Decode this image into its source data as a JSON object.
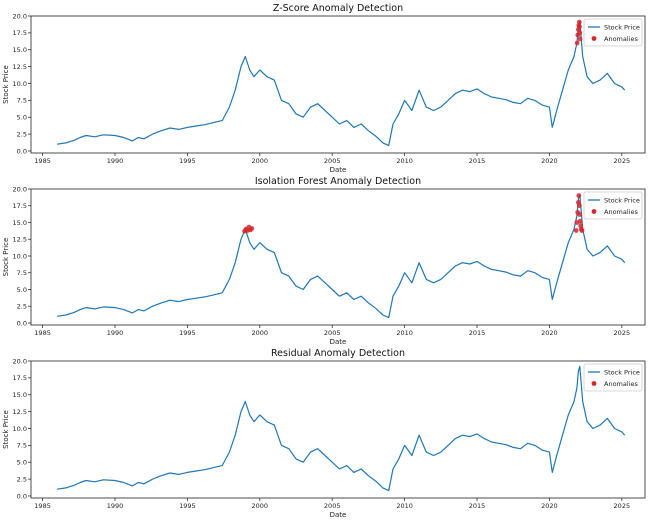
{
  "chart_data": [
    {
      "type": "line",
      "title": "Z-Score Anomaly Detection",
      "xlabel": "Date",
      "ylabel": "Stock Price",
      "xlim": [
        1984.2,
        2026.6
      ],
      "ylim": [
        -0.3,
        20.0
      ],
      "xticks": [
        1985,
        1990,
        1995,
        2000,
        2005,
        2010,
        2015,
        2020,
        2025
      ],
      "yticks": [
        0.0,
        2.5,
        5.0,
        7.5,
        10.0,
        12.5,
        15.0,
        17.5,
        20.0
      ],
      "legend_position": "top-right",
      "grid": false,
      "colors": {
        "line": "#1f77b4",
        "anomaly": "#d62728"
      },
      "series": [
        {
          "name": "Stock Price",
          "x": [
            1986.0,
            1986.6,
            1987.2,
            1987.6,
            1988.0,
            1988.6,
            1989.2,
            1990.0,
            1990.6,
            1991.2,
            1991.6,
            1992.0,
            1992.6,
            1993.2,
            1993.8,
            1994.4,
            1995.0,
            1995.6,
            1996.2,
            1996.8,
            1997.4,
            1997.9,
            1998.3,
            1998.7,
            1999.0,
            1999.3,
            1999.6,
            2000.0,
            2000.5,
            2001.0,
            2001.5,
            2002.0,
            2002.5,
            2003.0,
            2003.5,
            2004.0,
            2004.5,
            2005.0,
            2005.5,
            2006.0,
            2006.5,
            2007.0,
            2007.5,
            2008.0,
            2008.5,
            2008.9,
            2009.2,
            2009.6,
            2010.0,
            2010.5,
            2011.0,
            2011.5,
            2012.0,
            2012.5,
            2013.0,
            2013.5,
            2014.0,
            2014.5,
            2015.0,
            2015.5,
            2016.0,
            2016.5,
            2017.0,
            2017.5,
            2018.0,
            2018.5,
            2019.0,
            2019.5,
            2020.0,
            2020.2,
            2020.5,
            2020.9,
            2021.3,
            2021.7,
            2021.9,
            2022.0,
            2022.1,
            2022.3,
            2022.6,
            2023.0,
            2023.5,
            2024.0,
            2024.5,
            2025.0,
            2025.2
          ],
          "values": [
            1.0,
            1.2,
            1.6,
            2.0,
            2.3,
            2.1,
            2.4,
            2.3,
            2.0,
            1.5,
            2.0,
            1.8,
            2.5,
            3.0,
            3.4,
            3.2,
            3.5,
            3.7,
            3.9,
            4.2,
            4.5,
            6.5,
            9.0,
            12.5,
            14.0,
            12.0,
            11.0,
            12.0,
            11.0,
            10.5,
            7.5,
            7.0,
            5.5,
            5.0,
            6.5,
            7.0,
            6.0,
            5.0,
            4.0,
            4.5,
            3.5,
            4.0,
            3.0,
            2.2,
            1.2,
            0.8,
            4.0,
            5.5,
            7.5,
            6.0,
            9.0,
            6.5,
            6.0,
            6.5,
            7.5,
            8.5,
            9.0,
            8.8,
            9.2,
            8.5,
            8.0,
            7.8,
            7.6,
            7.2,
            7.0,
            7.8,
            7.5,
            6.8,
            6.5,
            3.5,
            6.0,
            9.0,
            12.0,
            14.0,
            16.0,
            18.5,
            19.2,
            14.0,
            11.0,
            10.0,
            10.5,
            11.5,
            10.0,
            9.5,
            9.0
          ]
        },
        {
          "name": "Anomalies",
          "x": [
            2021.92,
            2021.96,
            2022.0,
            2022.03,
            2022.06,
            2022.08,
            2022.1,
            2022.12
          ],
          "values": [
            16.0,
            17.2,
            18.0,
            18.6,
            19.1,
            18.4,
            17.5,
            16.6
          ]
        }
      ]
    },
    {
      "type": "line",
      "title": "Isolation Forest Anomaly Detection",
      "xlabel": "Date",
      "ylabel": "Stock Price",
      "xlim": [
        1984.2,
        2026.6
      ],
      "ylim": [
        -0.3,
        20.0
      ],
      "xticks": [
        1985,
        1990,
        1995,
        2000,
        2005,
        2010,
        2015,
        2020,
        2025
      ],
      "yticks": [
        0.0,
        2.5,
        5.0,
        7.5,
        10.0,
        12.5,
        15.0,
        17.5,
        20.0
      ],
      "legend_position": "top-right",
      "grid": false,
      "colors": {
        "line": "#1f77b4",
        "anomaly": "#d62728"
      },
      "series": [
        {
          "name": "Stock Price",
          "x": [
            1986.0,
            1986.6,
            1987.2,
            1987.6,
            1988.0,
            1988.6,
            1989.2,
            1990.0,
            1990.6,
            1991.2,
            1991.6,
            1992.0,
            1992.6,
            1993.2,
            1993.8,
            1994.4,
            1995.0,
            1995.6,
            1996.2,
            1996.8,
            1997.4,
            1997.9,
            1998.3,
            1998.7,
            1999.0,
            1999.3,
            1999.6,
            2000.0,
            2000.5,
            2001.0,
            2001.5,
            2002.0,
            2002.5,
            2003.0,
            2003.5,
            2004.0,
            2004.5,
            2005.0,
            2005.5,
            2006.0,
            2006.5,
            2007.0,
            2007.5,
            2008.0,
            2008.5,
            2008.9,
            2009.2,
            2009.6,
            2010.0,
            2010.5,
            2011.0,
            2011.5,
            2012.0,
            2012.5,
            2013.0,
            2013.5,
            2014.0,
            2014.5,
            2015.0,
            2015.5,
            2016.0,
            2016.5,
            2017.0,
            2017.5,
            2018.0,
            2018.5,
            2019.0,
            2019.5,
            2020.0,
            2020.2,
            2020.5,
            2020.9,
            2021.3,
            2021.7,
            2021.9,
            2022.0,
            2022.1,
            2022.3,
            2022.6,
            2023.0,
            2023.5,
            2024.0,
            2024.5,
            2025.0,
            2025.2
          ],
          "values": [
            1.0,
            1.2,
            1.6,
            2.0,
            2.3,
            2.1,
            2.4,
            2.3,
            2.0,
            1.5,
            2.0,
            1.8,
            2.5,
            3.0,
            3.4,
            3.2,
            3.5,
            3.7,
            3.9,
            4.2,
            4.5,
            6.5,
            9.0,
            12.5,
            14.0,
            12.0,
            11.0,
            12.0,
            11.0,
            10.5,
            7.5,
            7.0,
            5.5,
            5.0,
            6.5,
            7.0,
            6.0,
            5.0,
            4.0,
            4.5,
            3.5,
            4.0,
            3.0,
            2.2,
            1.2,
            0.8,
            4.0,
            5.5,
            7.5,
            6.0,
            9.0,
            6.5,
            6.0,
            6.5,
            7.5,
            8.5,
            9.0,
            8.8,
            9.2,
            8.5,
            8.0,
            7.8,
            7.6,
            7.2,
            7.0,
            7.8,
            7.5,
            6.8,
            6.5,
            3.5,
            6.0,
            9.0,
            12.0,
            14.0,
            16.0,
            18.5,
            19.2,
            14.0,
            11.0,
            10.0,
            10.5,
            11.5,
            10.0,
            9.5,
            9.0
          ]
        },
        {
          "name": "Anomalies",
          "x": [
            1998.95,
            1999.05,
            1999.15,
            1999.25,
            1999.35,
            1999.45,
            2021.85,
            2021.9,
            2021.95,
            2022.0,
            2022.03,
            2022.06,
            2022.09,
            2022.12,
            2022.16,
            2022.2,
            2022.25
          ],
          "values": [
            13.7,
            14.0,
            13.8,
            14.3,
            13.9,
            14.1,
            13.8,
            15.0,
            16.5,
            18.0,
            19.0,
            17.5,
            16.2,
            15.2,
            14.5,
            14.0,
            13.8
          ]
        }
      ]
    },
    {
      "type": "line",
      "title": "Residual Anomaly Detection",
      "xlabel": "Date",
      "ylabel": "Stock Price",
      "xlim": [
        1984.2,
        2026.6
      ],
      "ylim": [
        -0.3,
        20.0
      ],
      "xticks": [
        1985,
        1990,
        1995,
        2000,
        2005,
        2010,
        2015,
        2020,
        2025
      ],
      "yticks": [
        0.0,
        2.5,
        5.0,
        7.5,
        10.0,
        12.5,
        15.0,
        17.5,
        20.0
      ],
      "legend_position": "top-right",
      "grid": false,
      "colors": {
        "line": "#1f77b4",
        "anomaly": "#d62728"
      },
      "series": [
        {
          "name": "Stock Price",
          "x": [
            1986.0,
            1986.6,
            1987.2,
            1987.6,
            1988.0,
            1988.6,
            1989.2,
            1990.0,
            1990.6,
            1991.2,
            1991.6,
            1992.0,
            1992.6,
            1993.2,
            1993.8,
            1994.4,
            1995.0,
            1995.6,
            1996.2,
            1996.8,
            1997.4,
            1997.9,
            1998.3,
            1998.7,
            1999.0,
            1999.3,
            1999.6,
            2000.0,
            2000.5,
            2001.0,
            2001.5,
            2002.0,
            2002.5,
            2003.0,
            2003.5,
            2004.0,
            2004.5,
            2005.0,
            2005.5,
            2006.0,
            2006.5,
            2007.0,
            2007.5,
            2008.0,
            2008.5,
            2008.9,
            2009.2,
            2009.6,
            2010.0,
            2010.5,
            2011.0,
            2011.5,
            2012.0,
            2012.5,
            2013.0,
            2013.5,
            2014.0,
            2014.5,
            2015.0,
            2015.5,
            2016.0,
            2016.5,
            2017.0,
            2017.5,
            2018.0,
            2018.5,
            2019.0,
            2019.5,
            2020.0,
            2020.2,
            2020.5,
            2020.9,
            2021.3,
            2021.7,
            2021.9,
            2022.0,
            2022.1,
            2022.3,
            2022.6,
            2023.0,
            2023.5,
            2024.0,
            2024.5,
            2025.0,
            2025.2
          ],
          "values": [
            1.0,
            1.2,
            1.6,
            2.0,
            2.3,
            2.1,
            2.4,
            2.3,
            2.0,
            1.5,
            2.0,
            1.8,
            2.5,
            3.0,
            3.4,
            3.2,
            3.5,
            3.7,
            3.9,
            4.2,
            4.5,
            6.5,
            9.0,
            12.5,
            14.0,
            12.0,
            11.0,
            12.0,
            11.0,
            10.5,
            7.5,
            7.0,
            5.5,
            5.0,
            6.5,
            7.0,
            6.0,
            5.0,
            4.0,
            4.5,
            3.5,
            4.0,
            3.0,
            2.2,
            1.2,
            0.8,
            4.0,
            5.5,
            7.5,
            6.0,
            9.0,
            6.5,
            6.0,
            6.5,
            7.5,
            8.5,
            9.0,
            8.8,
            9.2,
            8.5,
            8.0,
            7.8,
            7.6,
            7.2,
            7.0,
            7.8,
            7.5,
            6.8,
            6.5,
            3.5,
            6.0,
            9.0,
            12.0,
            14.0,
            16.0,
            18.5,
            19.2,
            14.0,
            11.0,
            10.0,
            10.5,
            11.5,
            10.0,
            9.5,
            9.0
          ]
        },
        {
          "name": "Anomalies",
          "x": [],
          "values": []
        }
      ]
    }
  ]
}
